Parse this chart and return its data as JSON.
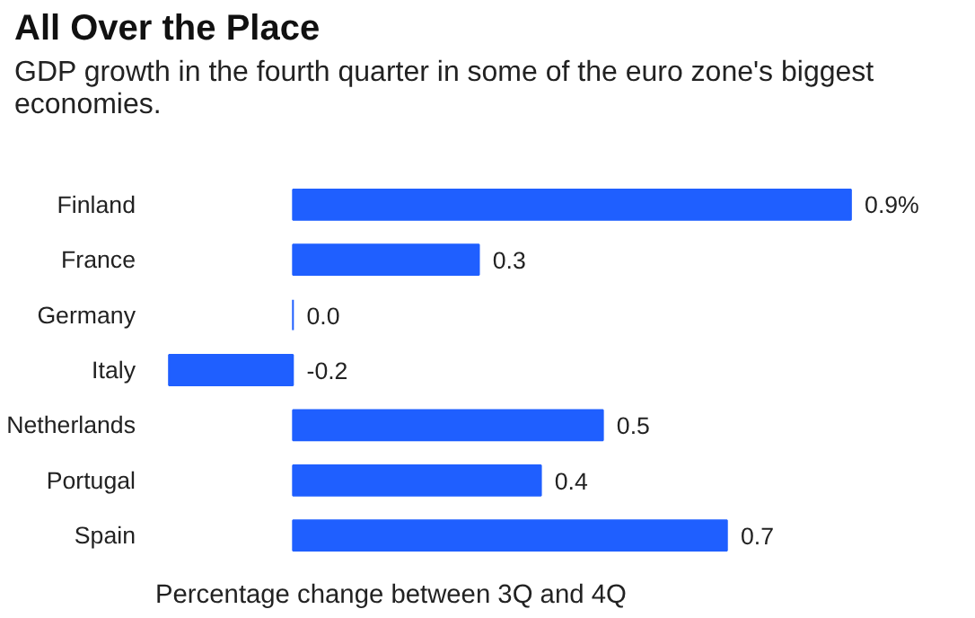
{
  "chart_data": {
    "type": "bar",
    "orientation": "horizontal",
    "title": "All Over the Place",
    "subtitle": "GDP growth in the fourth quarter in some of the euro zone's biggest economies.",
    "categories": [
      "Finland",
      "France",
      "Germany",
      "Italy",
      "Netherlands",
      "Portugal",
      "Spain"
    ],
    "values": [
      0.9,
      0.3,
      0.0,
      -0.2,
      0.5,
      0.4,
      0.7
    ],
    "value_labels": [
      "0.9%",
      "0.3",
      "0.0",
      "-0.2",
      "0.5",
      "0.4",
      "0.7"
    ],
    "color": "#1f5fff",
    "grid": false,
    "annotations": [
      "Percentage change between 3Q and 4Q"
    ]
  }
}
